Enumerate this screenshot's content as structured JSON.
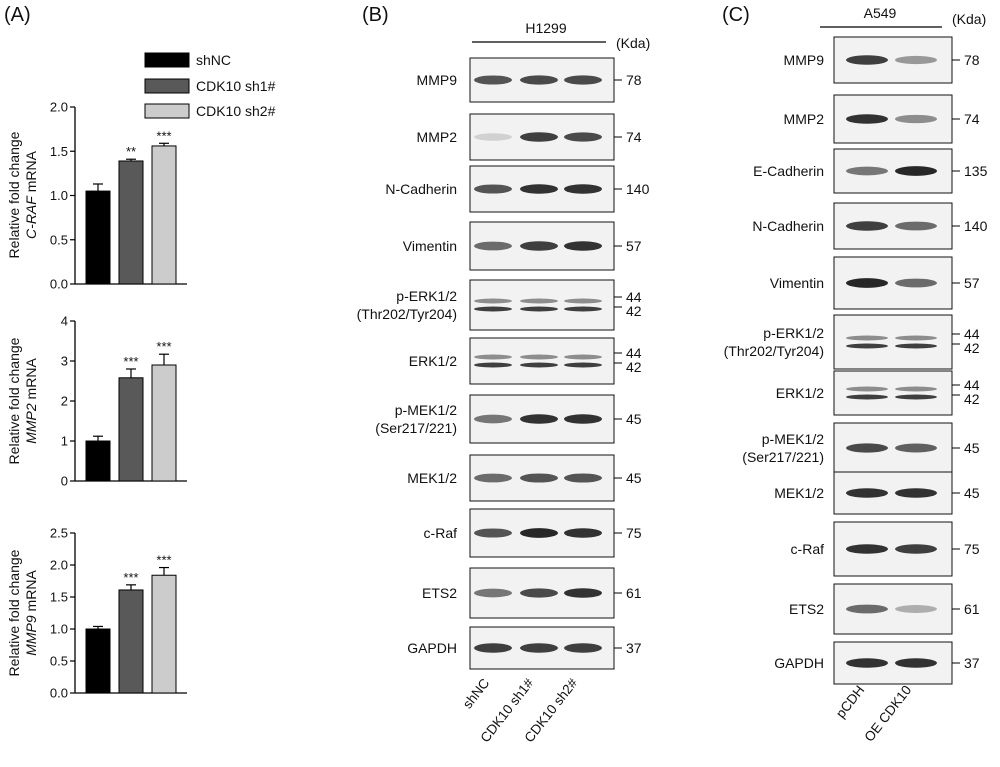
{
  "panels": {
    "a": {
      "letter": "(A)"
    },
    "b": {
      "letter": "(B)"
    },
    "c": {
      "letter": "(C)"
    }
  },
  "legend": [
    {
      "label": "shNC",
      "color": "#000000"
    },
    {
      "label": "CDK10 sh1#",
      "color": "#595959"
    },
    {
      "label": "CDK10 sh2#",
      "color": "#cccccc"
    }
  ],
  "chart_data": [
    {
      "type": "bar",
      "categories": [
        "shNC",
        "CDK10 sh1#",
        "CDK10 sh2#"
      ],
      "values": [
        1.05,
        1.39,
        1.56
      ],
      "errors": [
        0.08,
        0.02,
        0.03
      ],
      "significance": [
        "",
        "**",
        "***"
      ],
      "ylabel_line1": "Relative fold change",
      "ylabel_gene": "C-RAF",
      "ylabel_suffix": " mRNA",
      "ylim": [
        0,
        2.0
      ],
      "yticks": [
        "0.0",
        "0.5",
        "1.0",
        "1.5",
        "2.0"
      ]
    },
    {
      "type": "bar",
      "categories": [
        "shNC",
        "CDK10 sh1#",
        "CDK10 sh2#"
      ],
      "values": [
        1.0,
        2.58,
        2.9
      ],
      "errors": [
        0.12,
        0.22,
        0.27
      ],
      "significance": [
        "",
        "***",
        "***"
      ],
      "ylabel_line1": "Relative fold change",
      "ylabel_gene": "MMP2",
      "ylabel_suffix": " mRNA",
      "ylim": [
        0,
        4
      ],
      "yticks": [
        "0",
        "1",
        "2",
        "3",
        "4"
      ]
    },
    {
      "type": "bar",
      "categories": [
        "shNC",
        "CDK10 sh1#",
        "CDK10 sh2#"
      ],
      "values": [
        1.0,
        1.61,
        1.84
      ],
      "errors": [
        0.04,
        0.08,
        0.12
      ],
      "significance": [
        "",
        "***",
        "***"
      ],
      "ylabel_line1": "Relative fold change",
      "ylabel_gene": "MMP9",
      "ylabel_suffix": " mRNA",
      "ylim": [
        0,
        2.5
      ],
      "yticks": [
        "0.0",
        "0.5",
        "1.0",
        "1.5",
        "2.0",
        "2.5"
      ]
    }
  ],
  "blot_b": {
    "cell_line": "H1299",
    "unit": "(Kda)",
    "lanes": [
      "shNC",
      "CDK10 sh1#",
      "CDK10 sh2#"
    ],
    "rows": [
      {
        "name": [
          "MMP9"
        ],
        "kda": [
          "78"
        ]
      },
      {
        "name": [
          "MMP2"
        ],
        "kda": [
          "74"
        ]
      },
      {
        "name": [
          "N-Cadherin"
        ],
        "kda": [
          "140"
        ]
      },
      {
        "name": [
          "Vimentin"
        ],
        "kda": [
          "57"
        ]
      },
      {
        "name": [
          "p-ERK1/2",
          "(Thr202/Tyr204)"
        ],
        "kda": [
          "44",
          "42"
        ]
      },
      {
        "name": [
          "ERK1/2"
        ],
        "kda": [
          "44",
          "42"
        ]
      },
      {
        "name": [
          "p-MEK1/2",
          "(Ser217/221)"
        ],
        "kda": [
          "45"
        ]
      },
      {
        "name": [
          "MEK1/2"
        ],
        "kda": [
          "45"
        ]
      },
      {
        "name": [
          "c-Raf"
        ],
        "kda": [
          "75"
        ]
      },
      {
        "name": [
          "ETS2"
        ],
        "kda": [
          "61"
        ]
      },
      {
        "name": [
          "GAPDH"
        ],
        "kda": [
          "37"
        ]
      }
    ]
  },
  "blot_c": {
    "cell_line": "A549",
    "unit": "(Kda)",
    "lanes": [
      "pCDH",
      "OE CDK10"
    ],
    "rows": [
      {
        "name": [
          "MMP9"
        ],
        "kda": [
          "78"
        ]
      },
      {
        "name": [
          "MMP2"
        ],
        "kda": [
          "74"
        ]
      },
      {
        "name": [
          "E-Cadherin"
        ],
        "kda": [
          "135"
        ]
      },
      {
        "name": [
          "N-Cadherin"
        ],
        "kda": [
          "140"
        ]
      },
      {
        "name": [
          "Vimentin"
        ],
        "kda": [
          "57"
        ]
      },
      {
        "name": [
          "p-ERK1/2",
          "(Thr202/Tyr204)"
        ],
        "kda": [
          "44",
          "42"
        ]
      },
      {
        "name": [
          "ERK1/2"
        ],
        "kda": [
          "44",
          "42"
        ]
      },
      {
        "name": [
          "p-MEK1/2",
          "(Ser217/221)"
        ],
        "kda": [
          "45"
        ]
      },
      {
        "name": [
          "MEK1/2"
        ],
        "kda": [
          "45"
        ]
      },
      {
        "name": [
          "c-Raf"
        ],
        "kda": [
          "75"
        ]
      },
      {
        "name": [
          "ETS2"
        ],
        "kda": [
          "61"
        ]
      },
      {
        "name": [
          "GAPDH"
        ],
        "kda": [
          "37"
        ]
      }
    ]
  }
}
